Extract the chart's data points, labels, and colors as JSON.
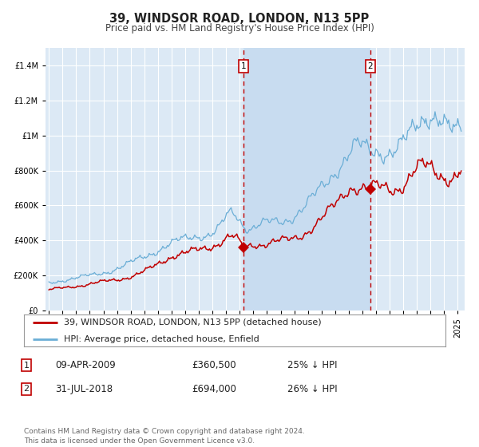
{
  "title": "39, WINDSOR ROAD, LONDON, N13 5PP",
  "subtitle": "Price paid vs. HM Land Registry's House Price Index (HPI)",
  "ylim": [
    0,
    1500000
  ],
  "xlim_start": 1994.75,
  "xlim_end": 2025.5,
  "background_color": "#ffffff",
  "plot_bg_color": "#dce9f5",
  "plot_bg_between_color": "#c8dcf0",
  "grid_color": "#ffffff",
  "hpi_color": "#6baed6",
  "price_color": "#c00000",
  "sale1_date": 2009.274,
  "sale1_price": 360500,
  "sale2_date": 2018.578,
  "sale2_price": 694000,
  "legend_line1": "39, WINDSOR ROAD, LONDON, N13 5PP (detached house)",
  "legend_line2": "HPI: Average price, detached house, Enfield",
  "table_row1": [
    "1",
    "09-APR-2009",
    "£360,500",
    "25% ↓ HPI"
  ],
  "table_row2": [
    "2",
    "31-JUL-2018",
    "£694,000",
    "26% ↓ HPI"
  ],
  "footer": "Contains HM Land Registry data © Crown copyright and database right 2024.\nThis data is licensed under the Open Government Licence v3.0.",
  "title_fontsize": 10.5,
  "subtitle_fontsize": 8.5,
  "tick_fontsize": 7,
  "legend_fontsize": 8,
  "table_fontsize": 8.5,
  "footer_fontsize": 6.5
}
